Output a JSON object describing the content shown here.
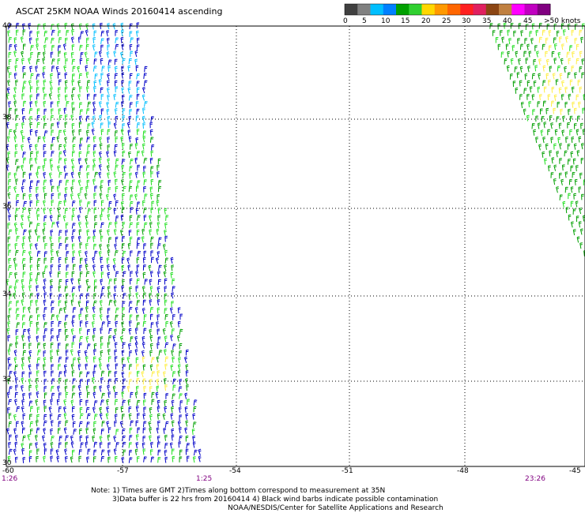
{
  "title": "ASCAT 25KM NOAA Winds 20160414 ascending",
  "color_scale": {
    "colors": [
      "#404040",
      "#808080",
      "#00bfff",
      "#0080ff",
      "#00a000",
      "#30d030",
      "#ffd700",
      "#ff9900",
      "#ff6600",
      "#ff2020",
      "#e02060",
      "#8b4513",
      "#c08040",
      "#ff00ff",
      "#c000c0",
      "#800080"
    ],
    "labels": [
      "0",
      "5",
      "10",
      "15",
      "20",
      "25",
      "30",
      "35",
      "40",
      "45",
      ">50 knots"
    ]
  },
  "lat_labels": [
    "40",
    "38",
    "36",
    "34",
    "32",
    "30"
  ],
  "lon_labels": [
    "-60",
    "-57",
    "-54",
    "-51",
    "-48",
    "-45"
  ],
  "times": [
    "1:26",
    "1:25",
    "23:26"
  ],
  "notes": [
    "Note: 1) Times are GMT 2)Times along bottom correspond to measurement at 35N",
    "3)Data buffer is 22 hrs from 20160414 4) Black wind barbs indicate possible contamination",
    "NOAA/NESDIS/Center for Satellite Applications and Research"
  ],
  "wind_colors": {
    "light_blue": "#00bfff",
    "blue": "#0000c8",
    "green": "#00a000",
    "light_green": "#20e020",
    "yellow": "#ffee40"
  }
}
